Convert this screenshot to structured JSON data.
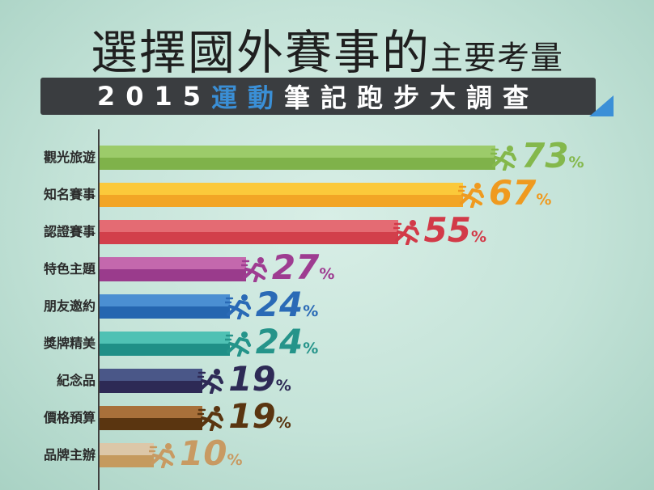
{
  "header": {
    "title_main": "選擇國外賽事的",
    "title_sub": "主要考量",
    "banner_pre": "2015",
    "banner_hl1": "運",
    "banner_hl2": "動",
    "banner_mid": "筆",
    "banner_sq": "記",
    "banner_post": "跑步大調查"
  },
  "colors": {
    "accent_blue": "#3a8fd6",
    "banner_bg": "#3a3d40"
  },
  "chart_data": {
    "type": "bar",
    "orientation": "horizontal",
    "categories": [
      "觀光旅遊",
      "知名賽事",
      "認證賽事",
      "特色主題",
      "朋友邀約",
      "獎牌精美",
      "紀念品",
      "價格預算",
      "品牌主辦"
    ],
    "values": [
      73,
      67,
      55,
      27,
      24,
      24,
      19,
      19,
      10
    ],
    "unit": "%",
    "bar_colors": [
      {
        "top": "#9ccb6a",
        "bottom": "#7fb24a",
        "text": "#84b84c"
      },
      {
        "top": "#fbc93a",
        "bottom": "#f2a525",
        "text": "#ef9a1f"
      },
      {
        "top": "#e46b73",
        "bottom": "#d23f4b",
        "text": "#d23a48"
      },
      {
        "top": "#c468ad",
        "bottom": "#9a3b8c",
        "text": "#9e3c91"
      },
      {
        "top": "#4b8fd2",
        "bottom": "#2566b0",
        "text": "#2a6ab6"
      },
      {
        "top": "#4fc1b4",
        "bottom": "#1f8f87",
        "text": "#25948a"
      },
      {
        "top": "#4a5788",
        "bottom": "#2d2a55",
        "text": "#2e2a56"
      },
      {
        "top": "#a8703a",
        "bottom": "#5a3510",
        "text": "#5a3510"
      },
      {
        "top": "#dcc7a8",
        "bottom": "#c59a5e",
        "text": "#c89a62"
      }
    ],
    "xlim": [
      0,
      100
    ],
    "grid": false,
    "legend": "none"
  }
}
